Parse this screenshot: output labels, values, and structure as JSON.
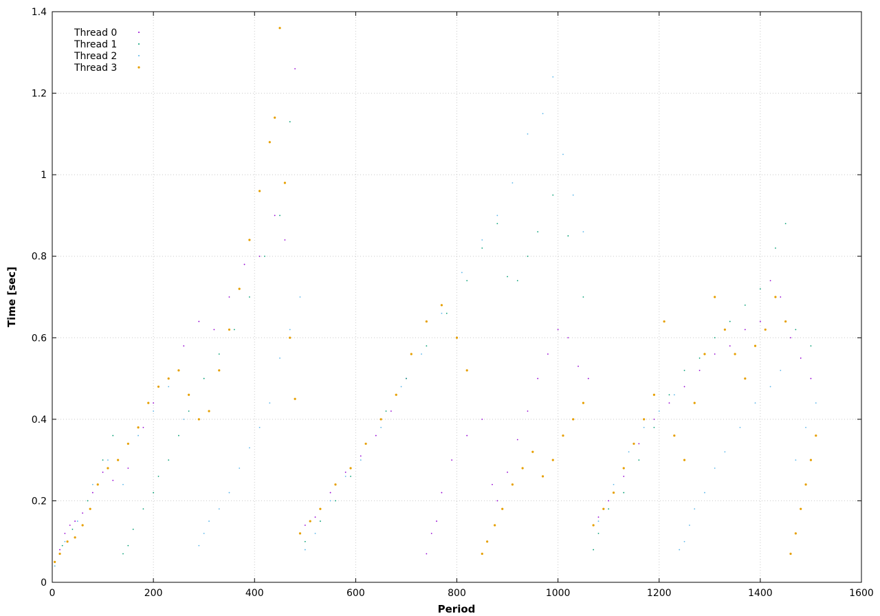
{
  "chart_data": {
    "type": "scatter",
    "xlabel": "Period",
    "ylabel": "Time [sec]",
    "xlim": [
      0,
      1600
    ],
    "ylim": [
      0,
      1.4
    ],
    "xticks": [
      "0",
      "200",
      "400",
      "600",
      "800",
      "1000",
      "1200",
      "1400",
      "1600"
    ],
    "yticks": [
      "0",
      "0.2",
      "0.4",
      "0.6",
      "0.8",
      "1",
      "1.2",
      "1.4"
    ],
    "grid": true,
    "legend_position": "top-left",
    "series": [
      {
        "name": "Thread 0",
        "color": "#9400d3",
        "points": [
          [
            5,
            0.05
          ],
          [
            15,
            0.08
          ],
          [
            25,
            0.12
          ],
          [
            35,
            0.14
          ],
          [
            45,
            0.15
          ],
          [
            60,
            0.17
          ],
          [
            80,
            0.22
          ],
          [
            100,
            0.27
          ],
          [
            120,
            0.25
          ],
          [
            150,
            0.28
          ],
          [
            180,
            0.38
          ],
          [
            200,
            0.44
          ],
          [
            230,
            0.5
          ],
          [
            260,
            0.58
          ],
          [
            290,
            0.64
          ],
          [
            320,
            0.62
          ],
          [
            350,
            0.7
          ],
          [
            380,
            0.78
          ],
          [
            410,
            0.8
          ],
          [
            440,
            0.9
          ],
          [
            460,
            0.84
          ],
          [
            480,
            1.26
          ],
          [
            500,
            0.14
          ],
          [
            520,
            0.16
          ],
          [
            550,
            0.22
          ],
          [
            580,
            0.27
          ],
          [
            610,
            0.31
          ],
          [
            640,
            0.36
          ],
          [
            670,
            0.42
          ],
          [
            700,
            0.5
          ],
          [
            740,
            0.07
          ],
          [
            750,
            0.12
          ],
          [
            760,
            0.15
          ],
          [
            770,
            0.22
          ],
          [
            790,
            0.3
          ],
          [
            820,
            0.36
          ],
          [
            850,
            0.4
          ],
          [
            870,
            0.24
          ],
          [
            880,
            0.2
          ],
          [
            900,
            0.27
          ],
          [
            920,
            0.35
          ],
          [
            940,
            0.42
          ],
          [
            960,
            0.5
          ],
          [
            980,
            0.56
          ],
          [
            1000,
            0.62
          ],
          [
            1020,
            0.6
          ],
          [
            1040,
            0.53
          ],
          [
            1060,
            0.5
          ],
          [
            1080,
            0.16
          ],
          [
            1100,
            0.2
          ],
          [
            1130,
            0.26
          ],
          [
            1160,
            0.34
          ],
          [
            1190,
            0.4
          ],
          [
            1220,
            0.44
          ],
          [
            1250,
            0.48
          ],
          [
            1280,
            0.52
          ],
          [
            1310,
            0.56
          ],
          [
            1340,
            0.58
          ],
          [
            1370,
            0.62
          ],
          [
            1400,
            0.64
          ],
          [
            1420,
            0.74
          ],
          [
            1440,
            0.7
          ],
          [
            1460,
            0.6
          ],
          [
            1480,
            0.55
          ],
          [
            1500,
            0.5
          ]
        ]
      },
      {
        "name": "Thread 1",
        "color": "#009e73",
        "points": [
          [
            5,
            0.04
          ],
          [
            20,
            0.09
          ],
          [
            40,
            0.13
          ],
          [
            70,
            0.2
          ],
          [
            100,
            0.3
          ],
          [
            120,
            0.36
          ],
          [
            140,
            0.07
          ],
          [
            150,
            0.09
          ],
          [
            160,
            0.13
          ],
          [
            180,
            0.18
          ],
          [
            200,
            0.22
          ],
          [
            210,
            0.26
          ],
          [
            230,
            0.3
          ],
          [
            250,
            0.36
          ],
          [
            270,
            0.42
          ],
          [
            300,
            0.5
          ],
          [
            330,
            0.56
          ],
          [
            360,
            0.62
          ],
          [
            390,
            0.7
          ],
          [
            420,
            0.8
          ],
          [
            450,
            0.9
          ],
          [
            470,
            1.13
          ],
          [
            500,
            0.1
          ],
          [
            530,
            0.15
          ],
          [
            560,
            0.2
          ],
          [
            590,
            0.26
          ],
          [
            620,
            0.34
          ],
          [
            660,
            0.42
          ],
          [
            700,
            0.5
          ],
          [
            740,
            0.58
          ],
          [
            780,
            0.66
          ],
          [
            820,
            0.74
          ],
          [
            850,
            0.82
          ],
          [
            880,
            0.88
          ],
          [
            900,
            0.75
          ],
          [
            920,
            0.74
          ],
          [
            940,
            0.8
          ],
          [
            960,
            0.86
          ],
          [
            990,
            0.95
          ],
          [
            1020,
            0.85
          ],
          [
            1050,
            0.7
          ],
          [
            1070,
            0.08
          ],
          [
            1080,
            0.12
          ],
          [
            1100,
            0.18
          ],
          [
            1130,
            0.22
          ],
          [
            1160,
            0.3
          ],
          [
            1190,
            0.38
          ],
          [
            1220,
            0.46
          ],
          [
            1250,
            0.52
          ],
          [
            1280,
            0.55
          ],
          [
            1310,
            0.6
          ],
          [
            1340,
            0.64
          ],
          [
            1370,
            0.68
          ],
          [
            1400,
            0.72
          ],
          [
            1430,
            0.82
          ],
          [
            1450,
            0.88
          ],
          [
            1470,
            0.62
          ],
          [
            1500,
            0.58
          ]
        ]
      },
      {
        "name": "Thread 2",
        "color": "#56b4e9",
        "points": [
          [
            5,
            0.04
          ],
          [
            25,
            0.1
          ],
          [
            50,
            0.15
          ],
          [
            80,
            0.24
          ],
          [
            110,
            0.3
          ],
          [
            140,
            0.24
          ],
          [
            170,
            0.36
          ],
          [
            200,
            0.42
          ],
          [
            230,
            0.48
          ],
          [
            260,
            0.4
          ],
          [
            290,
            0.09
          ],
          [
            300,
            0.12
          ],
          [
            310,
            0.15
          ],
          [
            330,
            0.18
          ],
          [
            350,
            0.22
          ],
          [
            370,
            0.28
          ],
          [
            390,
            0.33
          ],
          [
            410,
            0.38
          ],
          [
            430,
            0.44
          ],
          [
            450,
            0.55
          ],
          [
            470,
            0.62
          ],
          [
            490,
            0.7
          ],
          [
            500,
            0.08
          ],
          [
            520,
            0.12
          ],
          [
            550,
            0.2
          ],
          [
            580,
            0.26
          ],
          [
            610,
            0.3
          ],
          [
            650,
            0.38
          ],
          [
            690,
            0.48
          ],
          [
            730,
            0.56
          ],
          [
            770,
            0.66
          ],
          [
            810,
            0.76
          ],
          [
            850,
            0.84
          ],
          [
            880,
            0.9
          ],
          [
            910,
            0.98
          ],
          [
            940,
            1.1
          ],
          [
            970,
            1.15
          ],
          [
            990,
            1.24
          ],
          [
            1010,
            1.05
          ],
          [
            1030,
            0.95
          ],
          [
            1050,
            0.86
          ],
          [
            1080,
            0.15
          ],
          [
            1110,
            0.24
          ],
          [
            1140,
            0.32
          ],
          [
            1170,
            0.38
          ],
          [
            1200,
            0.42
          ],
          [
            1230,
            0.46
          ],
          [
            1240,
            0.08
          ],
          [
            1250,
            0.1
          ],
          [
            1260,
            0.14
          ],
          [
            1270,
            0.18
          ],
          [
            1290,
            0.22
          ],
          [
            1310,
            0.28
          ],
          [
            1330,
            0.32
          ],
          [
            1360,
            0.38
          ],
          [
            1390,
            0.44
          ],
          [
            1420,
            0.48
          ],
          [
            1440,
            0.52
          ],
          [
            1470,
            0.3
          ],
          [
            1490,
            0.38
          ],
          [
            1510,
            0.44
          ]
        ]
      },
      {
        "name": "Thread 3",
        "color": "#e69f00",
        "points": [
          [
            5,
            0.05
          ],
          [
            15,
            0.07
          ],
          [
            30,
            0.1
          ],
          [
            45,
            0.11
          ],
          [
            60,
            0.14
          ],
          [
            75,
            0.18
          ],
          [
            90,
            0.24
          ],
          [
            110,
            0.28
          ],
          [
            130,
            0.3
          ],
          [
            150,
            0.34
          ],
          [
            170,
            0.38
          ],
          [
            190,
            0.44
          ],
          [
            210,
            0.48
          ],
          [
            230,
            0.5
          ],
          [
            250,
            0.52
          ],
          [
            270,
            0.46
          ],
          [
            290,
            0.4
          ],
          [
            310,
            0.42
          ],
          [
            330,
            0.52
          ],
          [
            350,
            0.62
          ],
          [
            370,
            0.72
          ],
          [
            390,
            0.84
          ],
          [
            410,
            0.96
          ],
          [
            430,
            1.08
          ],
          [
            440,
            1.14
          ],
          [
            450,
            1.36
          ],
          [
            460,
            0.98
          ],
          [
            470,
            0.6
          ],
          [
            480,
            0.45
          ],
          [
            490,
            0.12
          ],
          [
            510,
            0.15
          ],
          [
            530,
            0.18
          ],
          [
            560,
            0.24
          ],
          [
            590,
            0.28
          ],
          [
            620,
            0.34
          ],
          [
            650,
            0.4
          ],
          [
            680,
            0.46
          ],
          [
            710,
            0.56
          ],
          [
            740,
            0.64
          ],
          [
            770,
            0.68
          ],
          [
            800,
            0.6
          ],
          [
            820,
            0.52
          ],
          [
            850,
            0.07
          ],
          [
            860,
            0.1
          ],
          [
            875,
            0.14
          ],
          [
            890,
            0.18
          ],
          [
            910,
            0.24
          ],
          [
            930,
            0.28
          ],
          [
            950,
            0.32
          ],
          [
            970,
            0.26
          ],
          [
            990,
            0.3
          ],
          [
            1010,
            0.36
          ],
          [
            1030,
            0.4
          ],
          [
            1050,
            0.44
          ],
          [
            1070,
            0.14
          ],
          [
            1090,
            0.18
          ],
          [
            1110,
            0.22
          ],
          [
            1130,
            0.28
          ],
          [
            1150,
            0.34
          ],
          [
            1170,
            0.4
          ],
          [
            1190,
            0.46
          ],
          [
            1210,
            0.64
          ],
          [
            1230,
            0.36
          ],
          [
            1250,
            0.3
          ],
          [
            1270,
            0.44
          ],
          [
            1290,
            0.56
          ],
          [
            1310,
            0.7
          ],
          [
            1330,
            0.62
          ],
          [
            1350,
            0.56
          ],
          [
            1370,
            0.5
          ],
          [
            1390,
            0.58
          ],
          [
            1410,
            0.62
          ],
          [
            1430,
            0.7
          ],
          [
            1450,
            0.64
          ],
          [
            1460,
            0.07
          ],
          [
            1470,
            0.12
          ],
          [
            1480,
            0.18
          ],
          [
            1490,
            0.24
          ],
          [
            1500,
            0.3
          ],
          [
            1510,
            0.36
          ]
        ]
      }
    ]
  }
}
